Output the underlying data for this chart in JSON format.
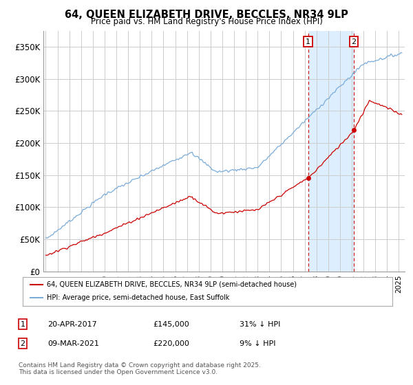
{
  "title": "64, QUEEN ELIZABETH DRIVE, BECCLES, NR34 9LP",
  "subtitle": "Price paid vs. HM Land Registry's House Price Index (HPI)",
  "ylabel_ticks": [
    "£0",
    "£50K",
    "£100K",
    "£150K",
    "£200K",
    "£250K",
    "£300K",
    "£350K"
  ],
  "ytick_values": [
    0,
    50000,
    100000,
    150000,
    200000,
    250000,
    300000,
    350000
  ],
  "ylim": [
    0,
    375000
  ],
  "xlim_start": 1994.8,
  "xlim_end": 2025.5,
  "sale1_x": 2017.3,
  "sale1_price": 145000,
  "sale1_date_str": "20-APR-2017",
  "sale1_pct": "31% ↓ HPI",
  "sale2_x": 2021.17,
  "sale2_price": 220000,
  "sale2_date_str": "09-MAR-2021",
  "sale2_pct": "9% ↓ HPI",
  "red_line_color": "#cc0000",
  "blue_line_color": "#7aacda",
  "highlight_color": "#ddeeff",
  "grid_color": "#cccccc",
  "background_color": "#ffffff",
  "legend_label_red": "64, QUEEN ELIZABETH DRIVE, BECCLES, NR34 9LP (semi-detached house)",
  "legend_label_blue": "HPI: Average price, semi-detached house, East Suffolk",
  "footnote": "Contains HM Land Registry data © Crown copyright and database right 2025.\nThis data is licensed under the Open Government Licence v3.0."
}
